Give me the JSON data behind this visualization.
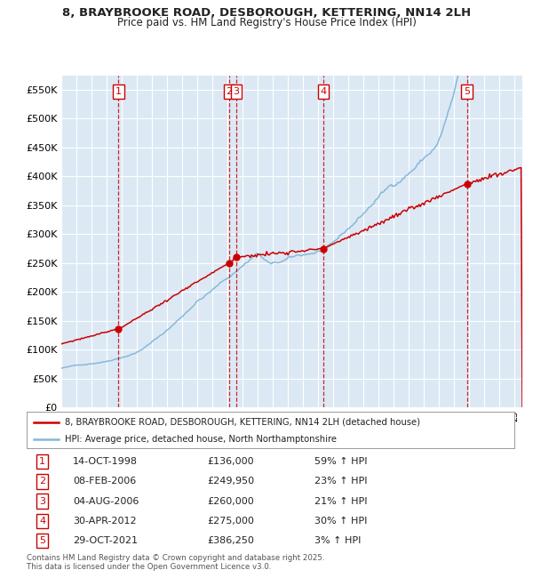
{
  "title_line1": "8, BRAYBROOKE ROAD, DESBOROUGH, KETTERING, NN14 2LH",
  "title_line2": "Price paid vs. HM Land Registry's House Price Index (HPI)",
  "background_color": "#dce9f5",
  "grid_color": "#ffffff",
  "red_line_color": "#cc0000",
  "blue_line_color": "#88b8d8",
  "vline_color": "#cc0000",
  "ylim": [
    0,
    575000
  ],
  "yticks": [
    0,
    50000,
    100000,
    150000,
    200000,
    250000,
    300000,
    350000,
    400000,
    450000,
    500000,
    550000
  ],
  "ytick_labels": [
    "£0",
    "£50K",
    "£100K",
    "£150K",
    "£200K",
    "£250K",
    "£300K",
    "£350K",
    "£400K",
    "£450K",
    "£500K",
    "£550K"
  ],
  "sales": [
    {
      "num": 1,
      "date_x": 1998.79,
      "price": 136000
    },
    {
      "num": 2,
      "date_x": 2006.1,
      "price": 249950
    },
    {
      "num": 3,
      "date_x": 2006.58,
      "price": 260000
    },
    {
      "num": 4,
      "date_x": 2012.33,
      "price": 275000
    },
    {
      "num": 5,
      "date_x": 2021.83,
      "price": 386250
    }
  ],
  "legend_red_label": "8, BRAYBROOKE ROAD, DESBOROUGH, KETTERING, NN14 2LH (detached house)",
  "legend_blue_label": "HPI: Average price, detached house, North Northamptonshire",
  "table_rows": [
    {
      "num": 1,
      "date": "14-OCT-1998",
      "price": "£136,000",
      "hpi": "59% ↑ HPI"
    },
    {
      "num": 2,
      "date": "08-FEB-2006",
      "price": "£249,950",
      "hpi": "23% ↑ HPI"
    },
    {
      "num": 3,
      "date": "04-AUG-2006",
      "price": "£260,000",
      "hpi": "21% ↑ HPI"
    },
    {
      "num": 4,
      "date": "30-APR-2012",
      "price": "£275,000",
      "hpi": "30% ↑ HPI"
    },
    {
      "num": 5,
      "date": "29-OCT-2021",
      "price": "£386,250",
      "hpi": "3% ↑ HPI"
    }
  ],
  "footnote_line1": "Contains HM Land Registry data © Crown copyright and database right 2025.",
  "footnote_line2": "This data is licensed under the Open Government Licence v3.0.",
  "xmin": 1995.0,
  "xmax": 2025.5
}
